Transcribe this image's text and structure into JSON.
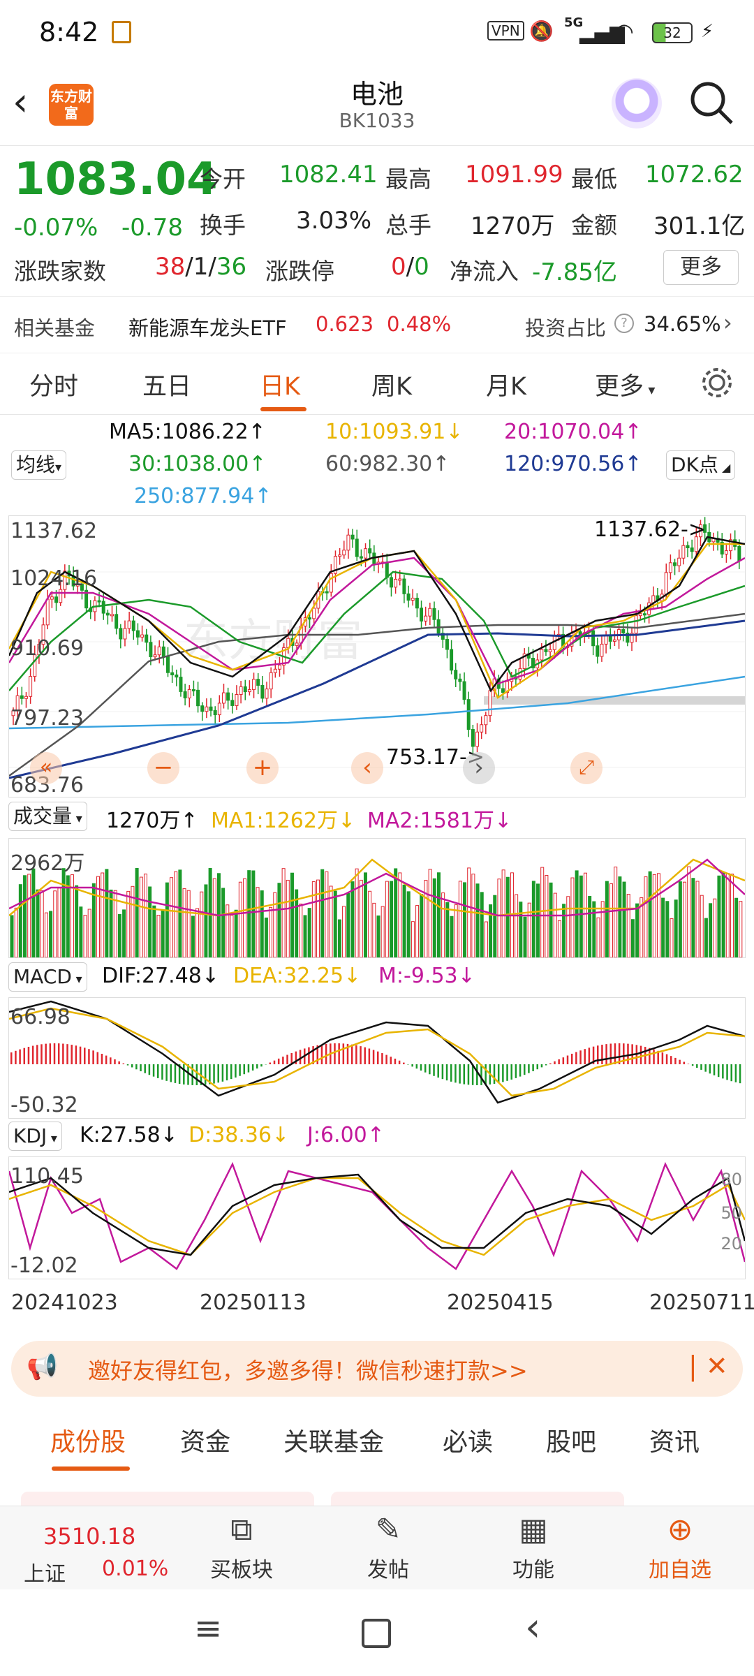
{
  "status": {
    "time": "8:42",
    "vpn": "VPN",
    "network": "5G",
    "battery": "32"
  },
  "header": {
    "title": "电池",
    "code": "BK1033",
    "logo_text": "东方财富"
  },
  "quote": {
    "price": "1083.04",
    "change_pct": "-0.07%",
    "change": "-0.78",
    "open_label": "今开",
    "open": "1082.41",
    "high_label": "最高",
    "high": "1091.99",
    "low_label": "最低",
    "low": "1072.62",
    "turnover_label": "换手",
    "turnover": "3.03%",
    "volume_label": "总手",
    "volume": "1270万",
    "amount_label": "金额",
    "amount": "301.1亿",
    "breadth_label": "涨跌家数",
    "breadth_up": "38",
    "breadth_flat": "1",
    "breadth_down": "36",
    "limit_label": "涨跌停",
    "limit_up": "0",
    "limit_down": "0",
    "netflow_label": "净流入",
    "netflow": "-7.85亿",
    "more": "更多"
  },
  "fund": {
    "label": "相关基金",
    "name": "新能源车龙头ETF",
    "price": "0.623",
    "pct": "0.48%",
    "ratio_label": "投资占比",
    "ratio": "34.65%"
  },
  "tabs": [
    "分时",
    "五日",
    "日K",
    "周K",
    "月K",
    "更多"
  ],
  "ma": {
    "selector": "均线",
    "dk": "DK点",
    "ma5": "MA5:1086.22↑",
    "ma10": "10:1093.91↓",
    "ma20": "20:1070.04↑",
    "ma30": "30:1038.00↑",
    "ma60": "60:982.30↑",
    "ma120": "120:970.56↑",
    "ma250": "250:877.94↑",
    "colors": {
      "ma5": "#111111",
      "ma10": "#e8b400",
      "ma20": "#c2189b",
      "ma30": "#1b9a2a",
      "ma60": "#555555",
      "ma120": "#1f3a93",
      "ma250": "#3aa3e0"
    }
  },
  "kline": {
    "y_labels": [
      "1137.62",
      "1024.16",
      "910.69",
      "797.23",
      "683.76"
    ],
    "high_marker": "1137.62->",
    "low_marker": "753.17->"
  },
  "volume": {
    "selector": "成交量",
    "value": "1270万↑",
    "ma1": "MA1:1262万↓",
    "ma2": "MA2:1581万↓",
    "top_label": "2962万"
  },
  "macd": {
    "selector": "MACD",
    "dif": "DIF:27.48↓",
    "dea": "DEA:32.25↓",
    "m": "M:-9.53↓",
    "top_label": "66.98",
    "bottom_label": "-50.32"
  },
  "kdj": {
    "selector": "KDJ",
    "k": "K:27.58↓",
    "d": "D:38.36↓",
    "j": "J:6.00↑",
    "top_label": "110.45",
    "bottom_label": "-12.02",
    "r80": "80",
    "r50": "50",
    "r20": "20"
  },
  "dates": [
    "20241023",
    "20250113",
    "20250415",
    "20250711"
  ],
  "promo": {
    "text": "邀好友得红包，多邀多得！微信秒速打款>>"
  },
  "bottom_tabs": [
    "成份股",
    "资金",
    "关联基金",
    "必读",
    "股吧",
    "资讯"
  ],
  "nav": {
    "index_value": "3510.18",
    "index_name": "上证",
    "index_pct": "0.01%",
    "items": [
      "买板块",
      "发帖",
      "功能",
      "加自选"
    ]
  },
  "chart_data": {
    "type": "candlestick",
    "ylim": [
      683.76,
      1137.62
    ],
    "x_start": "20241023",
    "x_end": "20250711",
    "x_ticks": [
      "20241023",
      "20250113",
      "20250415",
      "20250711"
    ],
    "close_trend": [
      810,
      880,
      1000,
      1050,
      1010,
      990,
      960,
      950,
      920,
      880,
      840,
      820,
      830,
      860,
      850,
      900,
      950,
      990,
      1060,
      1110,
      1080,
      1060,
      1020,
      990,
      960,
      880,
      760,
      850,
      870,
      900,
      920,
      940,
      950,
      930,
      940,
      960,
      1000,
      1050,
      1100,
      1120,
      1100,
      1083
    ],
    "high": 1137.62,
    "low": 753.17
  }
}
